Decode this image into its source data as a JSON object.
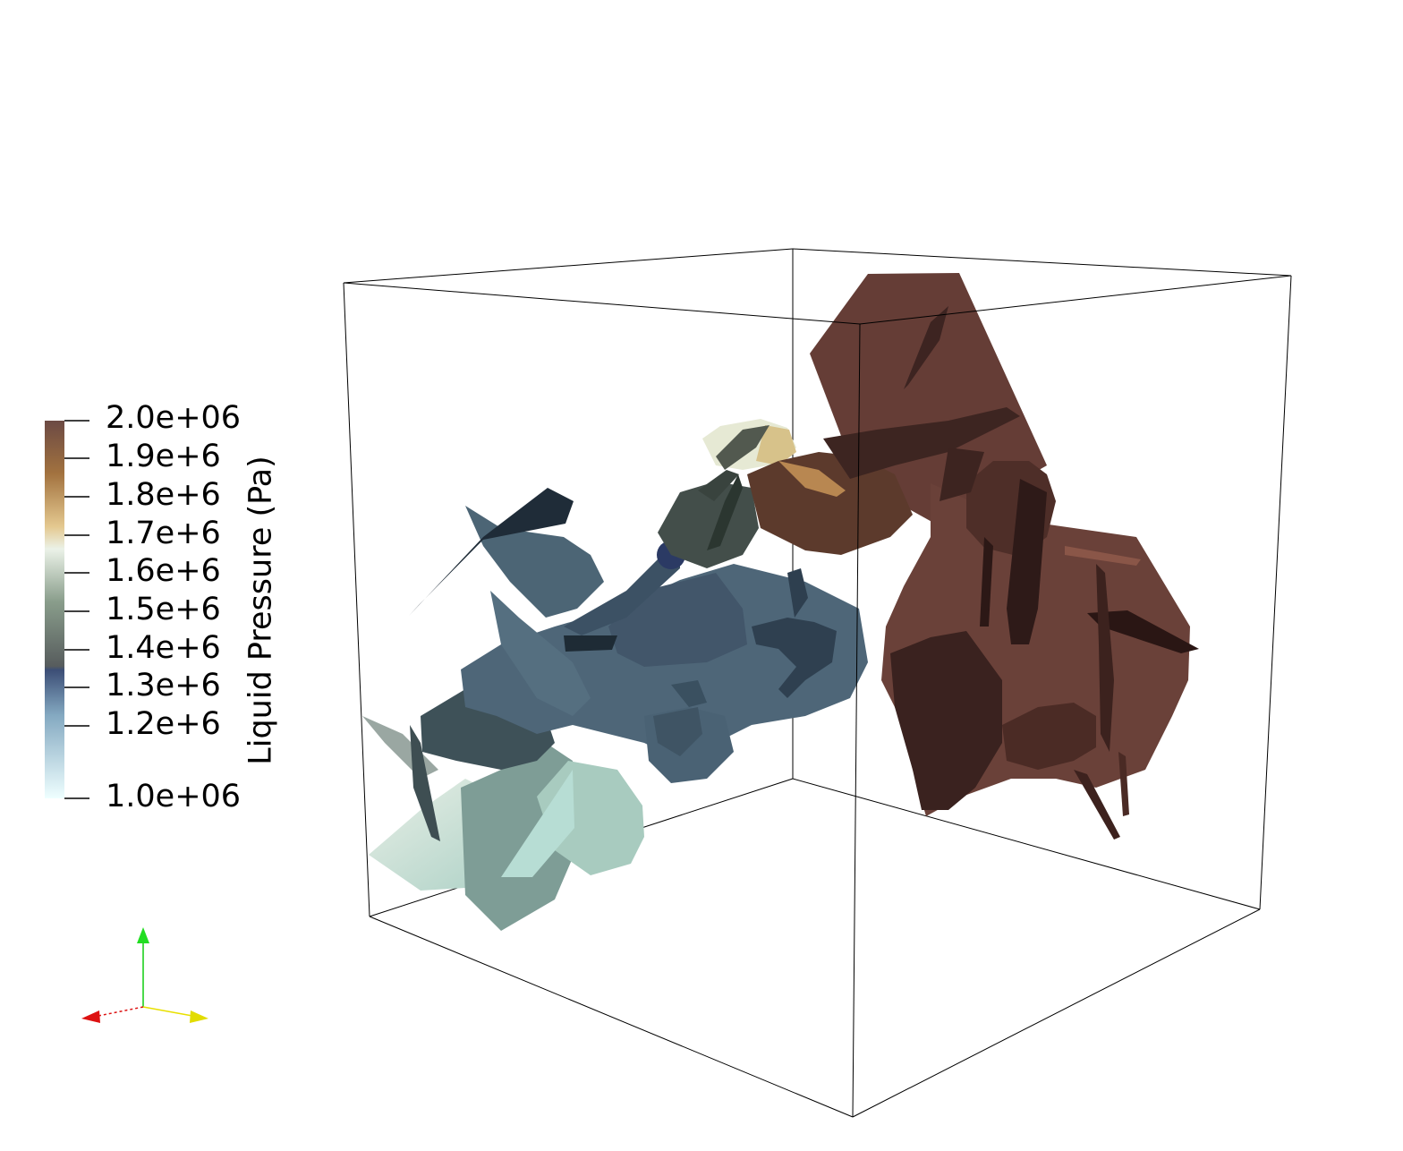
{
  "colorbar": {
    "title": "Liquid Pressure (Pa)",
    "range": [
      1000000,
      2000000
    ],
    "tick_labels": [
      "2.0e+06",
      "1.9e+6",
      "1.8e+6",
      "1.7e+6",
      "1.6e+6",
      "1.5e+6",
      "1.4e+6",
      "1.3e+6",
      "1.2e+6",
      "1.0e+06"
    ],
    "color_stops": [
      "#efffff",
      "#84a9c1",
      "#3c4e76",
      "#575c5d",
      "#899d8b",
      "#ebf2e8",
      "#e4c88f",
      "#a2723f",
      "#6c4a44"
    ]
  },
  "colors": {
    "background": "#ffffff",
    "bounding_box": "#000000",
    "axis_x": "#dd1111",
    "axis_y": "#11cc11",
    "axis_z": "#e8e000"
  },
  "icons": {
    "orientation_axes": "xyz-axes-icon"
  }
}
